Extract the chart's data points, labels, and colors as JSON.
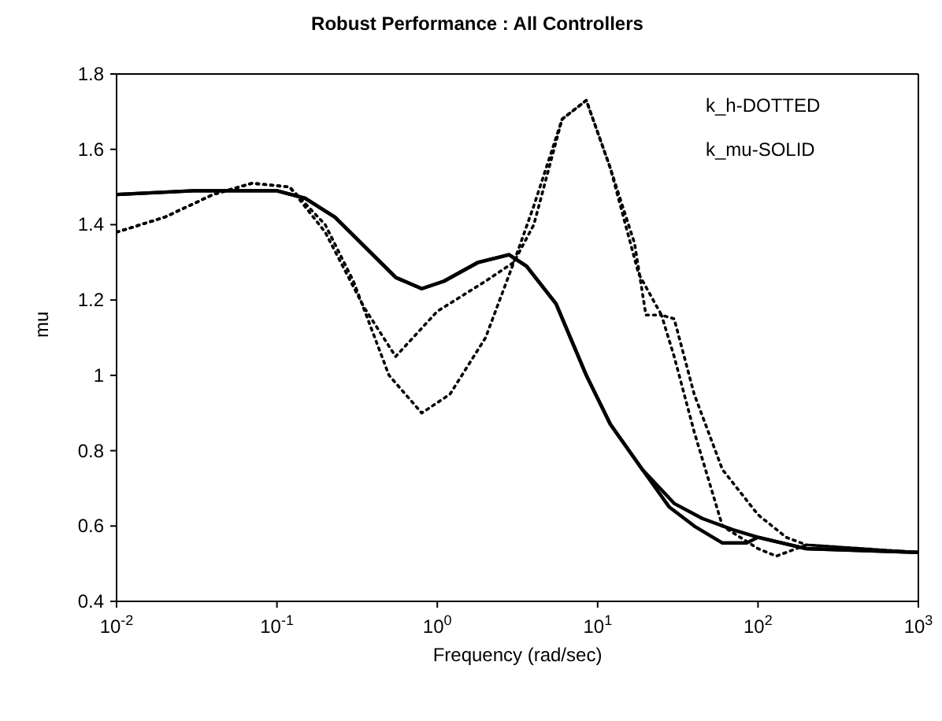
{
  "chart_data": {
    "type": "line",
    "title": "Robust Performance : All Controllers",
    "xlabel": "Frequency (rad/sec)",
    "ylabel": "mu",
    "annotations": [
      "k_h-DOTTED",
      "k_mu-SOLID"
    ],
    "log": "x",
    "xlim": [
      0.01,
      1000
    ],
    "xticks": [
      {
        "value": 0.01,
        "label": "10$^{-2}$"
      },
      {
        "value": 0.1,
        "label": "10$^{-1}$"
      },
      {
        "value": 1,
        "label": "10$^{0}$"
      },
      {
        "value": 10,
        "label": "10$^{1}$"
      },
      {
        "value": 100,
        "label": "10$^{2}$"
      },
      {
        "value": 1000,
        "label": "10$^{3}$"
      }
    ],
    "ylim": [
      0.4,
      1.8
    ],
    "yticks": [
      0.4,
      0.6,
      0.8,
      1,
      1.2,
      1.4,
      1.6,
      1.8
    ],
    "marker": "none",
    "series": [
      {
        "color": "#000000",
        "line_style": "dotted",
        "x": [
          0.01,
          0.02,
          0.04,
          0.07,
          0.12,
          0.2,
          0.3,
          0.5,
          0.8,
          1.2,
          2,
          3,
          4,
          6,
          8.5,
          12,
          17,
          20,
          25,
          30,
          40,
          60,
          100,
          130,
          200,
          1000
        ],
        "values": [
          1.38,
          1.42,
          1.48,
          1.51,
          1.5,
          1.4,
          1.25,
          1.0,
          0.9,
          0.95,
          1.1,
          1.3,
          1.45,
          1.68,
          1.73,
          1.55,
          1.35,
          1.16,
          1.16,
          1.05,
          0.85,
          0.6,
          0.54,
          0.52,
          0.55,
          0.53
        ]
      },
      {
        "color": "#000000",
        "line_style": "dotted",
        "x": [
          0.01,
          0.02,
          0.04,
          0.07,
          0.12,
          0.2,
          0.35,
          0.55,
          1,
          2,
          3,
          4,
          6,
          8.5,
          12,
          18,
          25,
          30,
          40,
          60,
          100,
          150,
          200,
          1000
        ],
        "values": [
          1.38,
          1.42,
          1.48,
          1.51,
          1.5,
          1.38,
          1.18,
          1.05,
          1.17,
          1.25,
          1.3,
          1.4,
          1.68,
          1.73,
          1.55,
          1.27,
          1.16,
          1.15,
          0.95,
          0.75,
          0.63,
          0.57,
          0.55,
          0.53
        ]
      },
      {
        "color": "#000000",
        "line_style": "solid",
        "x": [
          0.01,
          0.03,
          0.1,
          0.15,
          0.23,
          0.55,
          0.8,
          1.1,
          1.8,
          2.8,
          3.6,
          5.5,
          8.5,
          12,
          19,
          28,
          40,
          60,
          85,
          100,
          200,
          1000
        ],
        "values": [
          1.48,
          1.49,
          1.49,
          1.47,
          1.42,
          1.26,
          1.23,
          1.25,
          1.3,
          1.32,
          1.29,
          1.19,
          1.0,
          0.87,
          0.75,
          0.65,
          0.6,
          0.555,
          0.555,
          0.57,
          0.54,
          0.53
        ]
      },
      {
        "color": "#000000",
        "line_style": "solid",
        "x": [
          0.01,
          0.03,
          0.1,
          0.15,
          0.23,
          0.55,
          0.8,
          1.1,
          1.8,
          2.8,
          3.6,
          5.5,
          8.5,
          12,
          19,
          30,
          45,
          70,
          100,
          200,
          1000
        ],
        "values": [
          1.48,
          1.49,
          1.49,
          1.47,
          1.42,
          1.26,
          1.23,
          1.25,
          1.3,
          1.32,
          1.29,
          1.19,
          1.0,
          0.87,
          0.75,
          0.66,
          0.62,
          0.59,
          0.57,
          0.54,
          0.53
        ]
      }
    ]
  }
}
